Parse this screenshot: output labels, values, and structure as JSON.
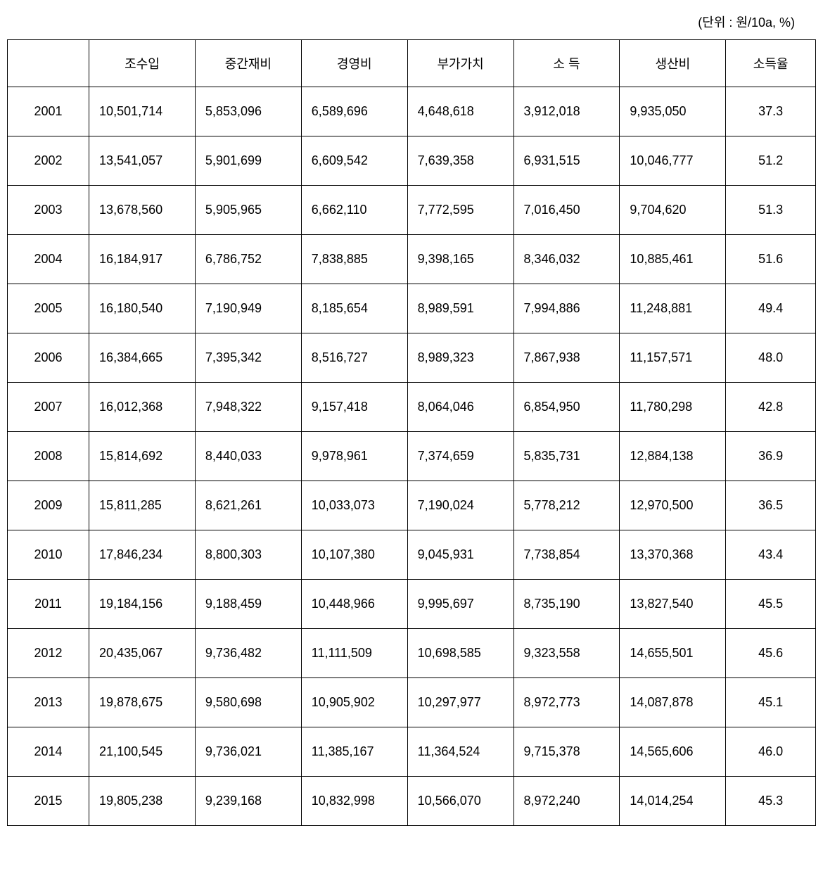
{
  "unit_label": "(단위 : 원/10a, %)",
  "columns": {
    "c0": "",
    "c1": "조수입",
    "c2": "중간재비",
    "c3": "경영비",
    "c4": "부가가치",
    "c5": "소 득",
    "c6": "생산비",
    "c7": "소득율"
  },
  "rows": [
    {
      "year": "2001",
      "v1": "10,501,714",
      "v2": "5,853,096",
      "v3": "6,589,696",
      "v4": "4,648,618",
      "v5": "3,912,018",
      "v6": "9,935,050",
      "rate": "37.3"
    },
    {
      "year": "2002",
      "v1": "13,541,057",
      "v2": "5,901,699",
      "v3": "6,609,542",
      "v4": "7,639,358",
      "v5": "6,931,515",
      "v6": "10,046,777",
      "rate": "51.2"
    },
    {
      "year": "2003",
      "v1": "13,678,560",
      "v2": "5,905,965",
      "v3": "6,662,110",
      "v4": "7,772,595",
      "v5": "7,016,450",
      "v6": "9,704,620",
      "rate": "51.3"
    },
    {
      "year": "2004",
      "v1": "16,184,917",
      "v2": "6,786,752",
      "v3": "7,838,885",
      "v4": "9,398,165",
      "v5": "8,346,032",
      "v6": "10,885,461",
      "rate": "51.6"
    },
    {
      "year": "2005",
      "v1": "16,180,540",
      "v2": "7,190,949",
      "v3": "8,185,654",
      "v4": "8,989,591",
      "v5": "7,994,886",
      "v6": "11,248,881",
      "rate": "49.4"
    },
    {
      "year": "2006",
      "v1": "16,384,665",
      "v2": "7,395,342",
      "v3": "8,516,727",
      "v4": "8,989,323",
      "v5": "7,867,938",
      "v6": "11,157,571",
      "rate": "48.0"
    },
    {
      "year": "2007",
      "v1": "16,012,368",
      "v2": "7,948,322",
      "v3": "9,157,418",
      "v4": "8,064,046",
      "v5": "6,854,950",
      "v6": "11,780,298",
      "rate": "42.8"
    },
    {
      "year": "2008",
      "v1": "15,814,692",
      "v2": "8,440,033",
      "v3": "9,978,961",
      "v4": "7,374,659",
      "v5": "5,835,731",
      "v6": "12,884,138",
      "rate": "36.9"
    },
    {
      "year": "2009",
      "v1": "15,811,285",
      "v2": "8,621,261",
      "v3": "10,033,073",
      "v4": "7,190,024",
      "v5": "5,778,212",
      "v6": "12,970,500",
      "rate": "36.5"
    },
    {
      "year": "2010",
      "v1": "17,846,234",
      "v2": "8,800,303",
      "v3": "10,107,380",
      "v4": "9,045,931",
      "v5": "7,738,854",
      "v6": "13,370,368",
      "rate": "43.4"
    },
    {
      "year": "2011",
      "v1": "19,184,156",
      "v2": "9,188,459",
      "v3": "10,448,966",
      "v4": "9,995,697",
      "v5": "8,735,190",
      "v6": "13,827,540",
      "rate": "45.5"
    },
    {
      "year": "2012",
      "v1": "20,435,067",
      "v2": "9,736,482",
      "v3": "11,111,509",
      "v4": "10,698,585",
      "v5": "9,323,558",
      "v6": "14,655,501",
      "rate": "45.6"
    },
    {
      "year": "2013",
      "v1": "19,878,675",
      "v2": "9,580,698",
      "v3": "10,905,902",
      "v4": "10,297,977",
      "v5": "8,972,773",
      "v6": "14,087,878",
      "rate": "45.1"
    },
    {
      "year": "2014",
      "v1": "21,100,545",
      "v2": "9,736,021",
      "v3": "11,385,167",
      "v4": "11,364,524",
      "v5": "9,715,378",
      "v6": "14,565,606",
      "rate": "46.0"
    },
    {
      "year": "2015",
      "v1": "19,805,238",
      "v2": "9,239,168",
      "v3": "10,832,998",
      "v4": "10,566,070",
      "v5": "8,972,240",
      "v6": "14,014,254",
      "rate": "45.3"
    }
  ]
}
